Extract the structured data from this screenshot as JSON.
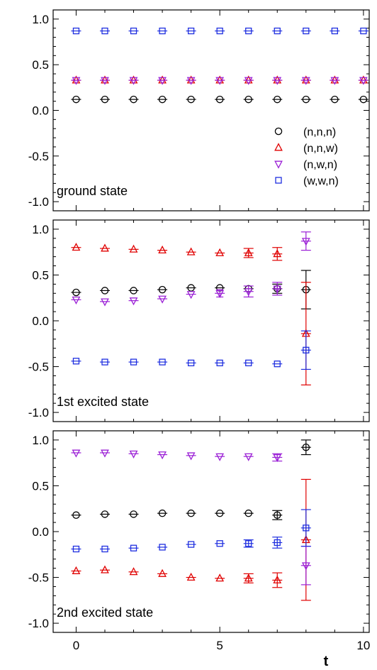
{
  "chart_data": {
    "type": "scatter",
    "xlabel": "t",
    "xlim": [
      -0.8,
      10.2
    ],
    "ylim": [
      -1.1,
      1.1
    ],
    "x_ticks": [
      0,
      5,
      10
    ],
    "y_ticks": [
      -1.0,
      -0.5,
      0.0,
      0.5,
      1.0
    ],
    "x_tick_labels": [
      "0",
      "5",
      "10"
    ],
    "y_tick_labels": [
      "-1.0",
      "-0.5",
      "0.0",
      "0.5",
      "1.0"
    ],
    "legend": {
      "placement": "bottom-right of top panel",
      "entries": [
        {
          "label": "(n,n,n)",
          "marker": "circle",
          "color": "#000000"
        },
        {
          "label": "(n,n,w)",
          "marker": "triangle-up",
          "color": "#e00000"
        },
        {
          "label": "(n,w,n)",
          "marker": "triangle-down",
          "color": "#9b20d6"
        },
        {
          "label": "(w,w,n)",
          "marker": "square",
          "color": "#1f2fe0"
        }
      ]
    },
    "panels": [
      {
        "label": "ground state",
        "series": [
          {
            "name": "(n,n,n)",
            "marker": "circle",
            "color": "#000000",
            "points": [
              [
                0,
                0.12,
                0.01
              ],
              [
                1,
                0.12,
                0.01
              ],
              [
                2,
                0.12,
                0.01
              ],
              [
                3,
                0.12,
                0.01
              ],
              [
                4,
                0.12,
                0.01
              ],
              [
                5,
                0.12,
                0.01
              ],
              [
                6,
                0.12,
                0.01
              ],
              [
                7,
                0.12,
                0.01
              ],
              [
                8,
                0.12,
                0.01
              ],
              [
                9,
                0.12,
                0.01
              ],
              [
                10,
                0.12,
                0.01
              ]
            ]
          },
          {
            "name": "(n,n,w)",
            "marker": "triangle-up",
            "color": "#e00000",
            "points": [
              [
                0,
                0.33,
                0.01
              ],
              [
                1,
                0.33,
                0.01
              ],
              [
                2,
                0.33,
                0.01
              ],
              [
                3,
                0.33,
                0.01
              ],
              [
                4,
                0.33,
                0.01
              ],
              [
                5,
                0.33,
                0.01
              ],
              [
                6,
                0.33,
                0.01
              ],
              [
                7,
                0.33,
                0.01
              ],
              [
                8,
                0.33,
                0.01
              ],
              [
                9,
                0.33,
                0.01
              ],
              [
                10,
                0.33,
                0.01
              ]
            ]
          },
          {
            "name": "(n,w,n)",
            "marker": "triangle-down",
            "color": "#9b20d6",
            "points": [
              [
                0,
                0.33,
                0.01
              ],
              [
                1,
                0.33,
                0.01
              ],
              [
                2,
                0.33,
                0.01
              ],
              [
                3,
                0.33,
                0.01
              ],
              [
                4,
                0.33,
                0.01
              ],
              [
                5,
                0.33,
                0.01
              ],
              [
                6,
                0.33,
                0.01
              ],
              [
                7,
                0.33,
                0.01
              ],
              [
                8,
                0.33,
                0.01
              ],
              [
                9,
                0.33,
                0.01
              ],
              [
                10,
                0.33,
                0.01
              ]
            ]
          },
          {
            "name": "(w,w,n)",
            "marker": "square",
            "color": "#1f2fe0",
            "points": [
              [
                0,
                0.87,
                0.005
              ],
              [
                1,
                0.87,
                0.005
              ],
              [
                2,
                0.87,
                0.005
              ],
              [
                3,
                0.87,
                0.005
              ],
              [
                4,
                0.87,
                0.005
              ],
              [
                5,
                0.87,
                0.005
              ],
              [
                6,
                0.87,
                0.005
              ],
              [
                7,
                0.87,
                0.005
              ],
              [
                8,
                0.87,
                0.005
              ],
              [
                9,
                0.87,
                0.005
              ],
              [
                10,
                0.87,
                0.005
              ]
            ]
          }
        ]
      },
      {
        "label": "1st excited state",
        "series": [
          {
            "name": "(n,n,n)",
            "marker": "circle",
            "color": "#000000",
            "points": [
              [
                0,
                0.31,
                0.02
              ],
              [
                1,
                0.33,
                0.02
              ],
              [
                2,
                0.33,
                0.02
              ],
              [
                3,
                0.34,
                0.02
              ],
              [
                4,
                0.36,
                0.02
              ],
              [
                5,
                0.36,
                0.02
              ],
              [
                6,
                0.35,
                0.03
              ],
              [
                7,
                0.35,
                0.05
              ],
              [
                8,
                0.34,
                0.21
              ]
            ]
          },
          {
            "name": "(n,n,w)",
            "marker": "triangle-up",
            "color": "#e00000",
            "points": [
              [
                0,
                0.8,
                0.01
              ],
              [
                1,
                0.79,
                0.01
              ],
              [
                2,
                0.78,
                0.01
              ],
              [
                3,
                0.77,
                0.02
              ],
              [
                4,
                0.75,
                0.02
              ],
              [
                5,
                0.74,
                0.03
              ],
              [
                6,
                0.74,
                0.05
              ],
              [
                7,
                0.73,
                0.07
              ],
              [
                8,
                -0.14,
                0.56
              ]
            ]
          },
          {
            "name": "(n,w,n)",
            "marker": "triangle-down",
            "color": "#9b20d6",
            "points": [
              [
                0,
                0.23,
                0.02
              ],
              [
                1,
                0.21,
                0.02
              ],
              [
                2,
                0.22,
                0.02
              ],
              [
                3,
                0.24,
                0.02
              ],
              [
                4,
                0.29,
                0.03
              ],
              [
                5,
                0.3,
                0.04
              ],
              [
                6,
                0.32,
                0.06
              ],
              [
                7,
                0.35,
                0.07
              ],
              [
                8,
                0.87,
                0.1
              ]
            ]
          },
          {
            "name": "(w,w,n)",
            "marker": "square",
            "color": "#1f2fe0",
            "points": [
              [
                0,
                -0.44,
                0.005
              ],
              [
                1,
                -0.45,
                0.005
              ],
              [
                2,
                -0.45,
                0.005
              ],
              [
                3,
                -0.45,
                0.005
              ],
              [
                4,
                -0.46,
                0.005
              ],
              [
                5,
                -0.46,
                0.01
              ],
              [
                6,
                -0.46,
                0.01
              ],
              [
                7,
                -0.47,
                0.01
              ],
              [
                8,
                -0.32,
                0.21
              ]
            ]
          }
        ]
      },
      {
        "label": "2nd excited state",
        "series": [
          {
            "name": "(n,n,n)",
            "marker": "circle",
            "color": "#000000",
            "points": [
              [
                0,
                0.18,
                0.01
              ],
              [
                1,
                0.19,
                0.01
              ],
              [
                2,
                0.19,
                0.01
              ],
              [
                3,
                0.2,
                0.01
              ],
              [
                4,
                0.2,
                0.02
              ],
              [
                5,
                0.2,
                0.02
              ],
              [
                6,
                0.2,
                0.03
              ],
              [
                7,
                0.18,
                0.05
              ],
              [
                8,
                0.92,
                0.08
              ]
            ]
          },
          {
            "name": "(n,n,w)",
            "marker": "triangle-up",
            "color": "#e00000",
            "points": [
              [
                0,
                -0.43,
                0.01
              ],
              [
                1,
                -0.42,
                0.02
              ],
              [
                2,
                -0.44,
                0.02
              ],
              [
                3,
                -0.46,
                0.02
              ],
              [
                4,
                -0.5,
                0.02
              ],
              [
                5,
                -0.51,
                0.03
              ],
              [
                6,
                -0.51,
                0.05
              ],
              [
                7,
                -0.53,
                0.08
              ],
              [
                8,
                -0.09,
                0.66
              ]
            ]
          },
          {
            "name": "(n,w,n)",
            "marker": "triangle-down",
            "color": "#9b20d6",
            "points": [
              [
                0,
                0.86,
                0.005
              ],
              [
                1,
                0.86,
                0.005
              ],
              [
                2,
                0.85,
                0.01
              ],
              [
                3,
                0.84,
                0.01
              ],
              [
                4,
                0.83,
                0.01
              ],
              [
                5,
                0.82,
                0.02
              ],
              [
                6,
                0.82,
                0.03
              ],
              [
                7,
                0.81,
                0.04
              ],
              [
                8,
                -0.37,
                0.21
              ]
            ]
          },
          {
            "name": "(w,w,n)",
            "marker": "square",
            "color": "#1f2fe0",
            "points": [
              [
                0,
                -0.19,
                0.01
              ],
              [
                1,
                -0.19,
                0.01
              ],
              [
                2,
                -0.18,
                0.01
              ],
              [
                3,
                -0.17,
                0.01
              ],
              [
                4,
                -0.14,
                0.02
              ],
              [
                5,
                -0.13,
                0.03
              ],
              [
                6,
                -0.13,
                0.04
              ],
              [
                7,
                -0.12,
                0.06
              ],
              [
                8,
                0.04,
                0.2
              ]
            ]
          }
        ]
      }
    ]
  }
}
